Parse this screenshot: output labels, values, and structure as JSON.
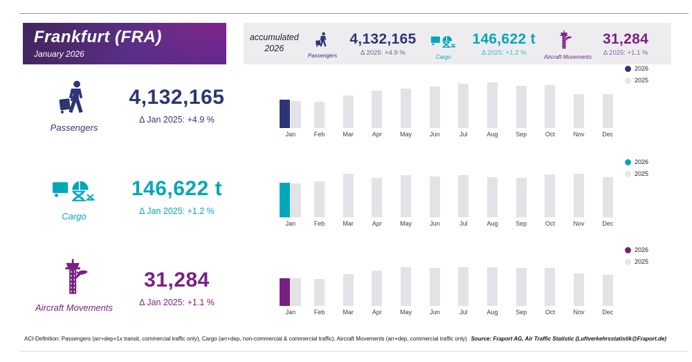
{
  "header": {
    "title": "Frankfurt (FRA)",
    "subtitle": "January 2026"
  },
  "summary": {
    "accumulated_line1": "accumulated",
    "accumulated_line2": "2026",
    "items": [
      {
        "id": "passengers",
        "label": "Passengers",
        "value": "4,132,165",
        "delta": "Δ 2025: +4.9 %",
        "color": "#2e3576"
      },
      {
        "id": "cargo",
        "label": "Cargo",
        "value": "146,622 t",
        "delta": "Δ 2025: +1.2 %",
        "color": "#00a7ba"
      },
      {
        "id": "aircraft-movements",
        "label": "Aircraft Movements",
        "value": "31,284",
        "delta": "Δ 2025: +1.1 %",
        "color": "#7a2083"
      }
    ]
  },
  "rows": [
    {
      "id": "passengers",
      "label": "Passengers",
      "value": "4,132,165",
      "delta": "Δ Jan 2025: +4.9 %",
      "color": "#2e3576"
    },
    {
      "id": "cargo",
      "label": "Cargo",
      "value": "146,622 t",
      "delta": "Δ Jan 2025: +1.2 %",
      "color": "#00a7ba"
    },
    {
      "id": "aircraft-movements",
      "label": "Aircraft Movements",
      "value": "31,284",
      "delta": "Δ Jan 2025: +1.1 %",
      "color": "#7a2083"
    }
  ],
  "chart_data": [
    {
      "type": "bar",
      "title": "Passengers per month",
      "unit": "passengers",
      "categories": [
        "Jan",
        "Feb",
        "Mar",
        "Apr",
        "May",
        "Jun",
        "Jul",
        "Aug",
        "Sep",
        "Oct",
        "Nov",
        "Dec"
      ],
      "series": [
        {
          "name": "2026",
          "color": "#2e3576",
          "values": [
            4132165,
            null,
            null,
            null,
            null,
            null,
            null,
            null,
            null,
            null,
            null,
            null
          ]
        },
        {
          "name": "2025",
          "color": "#e3e3e7",
          "values": [
            3940000,
            3800000,
            4700000,
            5400000,
            5700000,
            6000000,
            6400000,
            6600000,
            6100000,
            6200000,
            4900000,
            4900000
          ]
        }
      ],
      "values_estimated_from_bar_heights": true,
      "legend_position": "top-right",
      "axes_hidden": true
    },
    {
      "type": "bar",
      "title": "Cargo per month",
      "unit": "tonnes",
      "categories": [
        "Jan",
        "Feb",
        "Mar",
        "Apr",
        "May",
        "Jun",
        "Jul",
        "Aug",
        "Sep",
        "Oct",
        "Nov",
        "Dec"
      ],
      "series": [
        {
          "name": "2026",
          "color": "#00a7ba",
          "values": [
            146622,
            null,
            null,
            null,
            null,
            null,
            null,
            null,
            null,
            null,
            null,
            null
          ]
        },
        {
          "name": "2025",
          "color": "#e3e3e7",
          "values": [
            144900,
            153800,
            186000,
            169000,
            180000,
            174000,
            180000,
            171000,
            169000,
            183000,
            186000,
            171000
          ]
        }
      ],
      "values_estimated_from_bar_heights": true,
      "legend_position": "top-right",
      "axes_hidden": true
    },
    {
      "type": "bar",
      "title": "Aircraft Movements per month",
      "unit": "movements",
      "categories": [
        "Jan",
        "Feb",
        "Mar",
        "Apr",
        "May",
        "Jun",
        "Jul",
        "Aug",
        "Sep",
        "Oct",
        "Nov",
        "Dec"
      ],
      "series": [
        {
          "name": "2026",
          "color": "#7a2083",
          "values": [
            31284,
            null,
            null,
            null,
            null,
            null,
            null,
            null,
            null,
            null,
            null,
            null
          ]
        },
        {
          "name": "2025",
          "color": "#e3e3e7",
          "values": [
            30900,
            30200,
            35600,
            39400,
            43300,
            42500,
            43300,
            43300,
            42500,
            42500,
            36400,
            34800
          ]
        }
      ],
      "values_estimated_from_bar_heights": true,
      "legend_position": "top-right",
      "axes_hidden": true
    }
  ],
  "legend": {
    "labels": [
      "2026",
      "2025"
    ],
    "color_2025_dot": "#e6e6ea"
  },
  "footer": {
    "definition": "ACI-Definition: Passengers (arr+dep+1x transit, commercial traffic only), Cargo (arr+dep, non-commercial & commercial traffic), Aircraft Movements (arr+dep, commercial traffic only)",
    "source": "Source: Fraport AG, Air Traffic Statistic (Luftverkehrsstatistik@Fraport.de)"
  },
  "colors": {
    "navy": "#2e3576",
    "teal": "#00a7ba",
    "purple": "#7a2083",
    "bar_2025": "#e3e3e7",
    "summary_bg": "#ededf0"
  }
}
